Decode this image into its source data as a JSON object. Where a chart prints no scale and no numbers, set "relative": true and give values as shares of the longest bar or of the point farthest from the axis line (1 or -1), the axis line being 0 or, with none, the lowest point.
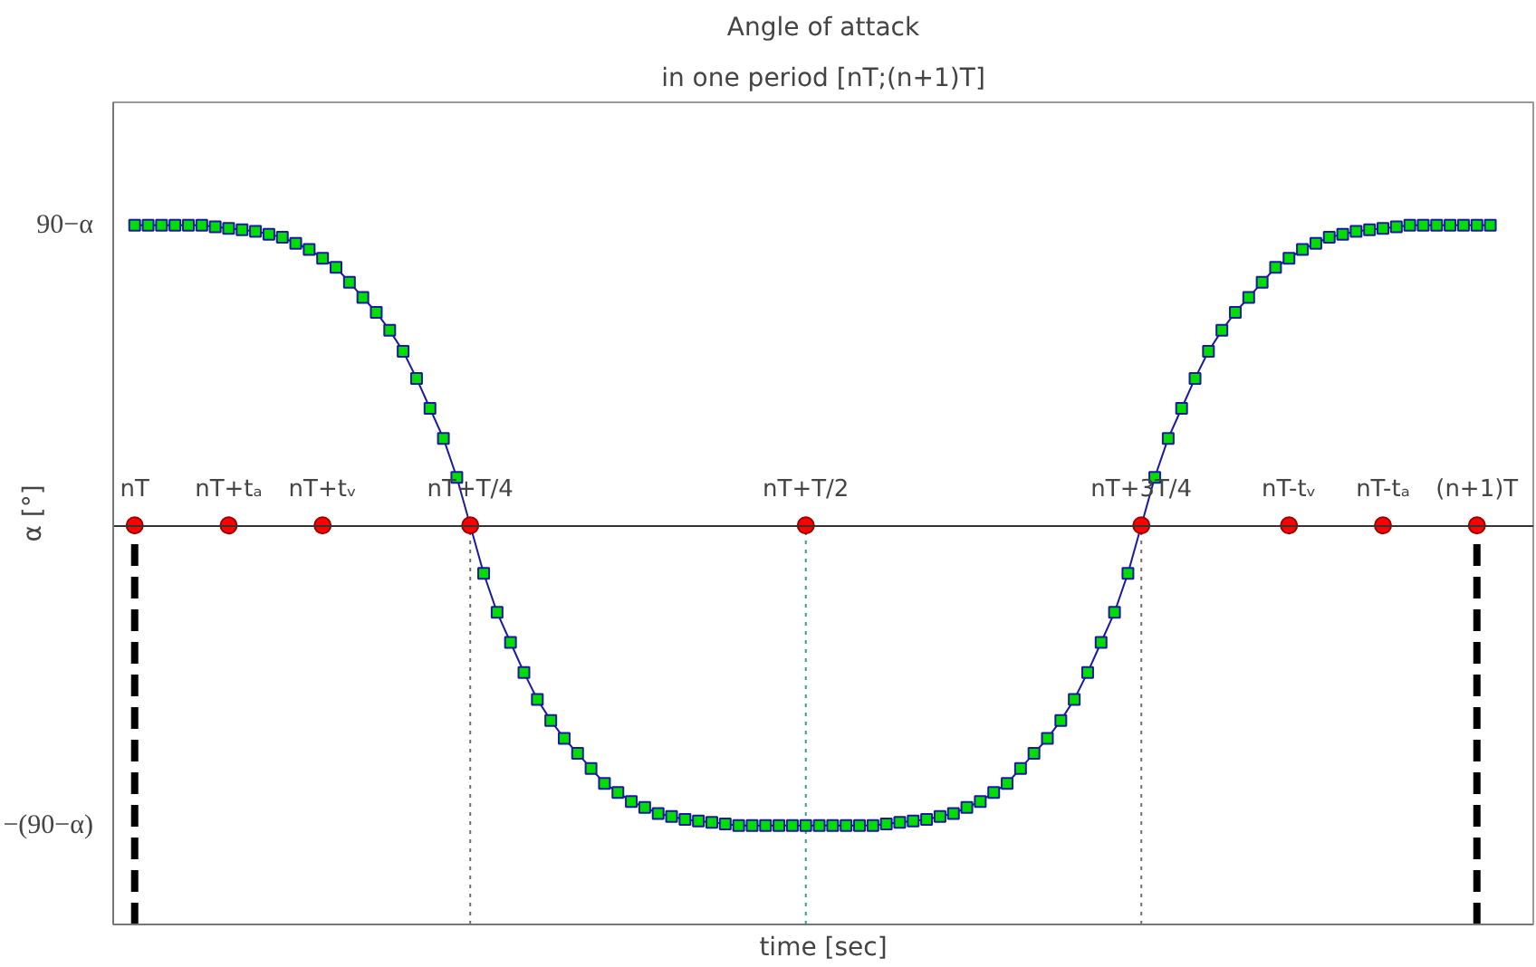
{
  "chart_data": {
    "type": "line",
    "title": "Angle of attack",
    "subtitle": "in one period [nT;(n+1)T]",
    "xlabel": "time [sec]",
    "ylabel": "α [°]",
    "relative": true,
    "grid": false,
    "categories": [
      "nT",
      null,
      null,
      null,
      null,
      null,
      null,
      "nT+tₐ",
      null,
      null,
      null,
      null,
      null,
      null,
      "nT+tᵥ",
      null,
      null,
      null,
      null,
      null,
      null,
      null,
      null,
      null,
      null,
      "nT+T/4",
      null,
      null,
      null,
      null,
      null,
      null,
      null,
      null,
      null,
      null,
      null,
      null,
      null,
      null,
      null,
      null,
      null,
      null,
      null,
      null,
      null,
      null,
      null,
      null,
      "nT+T/2",
      null,
      null,
      null,
      null,
      null,
      null,
      null,
      null,
      null,
      null,
      null,
      null,
      null,
      null,
      null,
      null,
      null,
      null,
      null,
      null,
      null,
      null,
      null,
      null,
      "nT+3T/4",
      null,
      null,
      null,
      null,
      null,
      null,
      null,
      null,
      null,
      null,
      "nT-tᵥ",
      null,
      null,
      null,
      null,
      null,
      null,
      "nT-tₐ",
      null,
      null,
      null,
      null,
      null,
      null,
      "(n+1)T",
      null
    ],
    "series": [
      {
        "color": "#1a1aa0",
        "marker": "square",
        "line_style": "solid",
        "values": [
          1,
          1,
          1,
          1,
          1,
          1,
          0.995,
          0.99,
          0.985,
          0.98,
          0.97,
          0.96,
          0.94,
          0.92,
          0.89,
          0.86,
          0.81,
          0.76,
          0.71,
          0.65,
          0.58,
          0.49,
          0.39,
          0.29,
          0.16,
          0,
          -0.16,
          -0.29,
          -0.39,
          -0.49,
          -0.58,
          -0.65,
          -0.71,
          -0.76,
          -0.81,
          -0.86,
          -0.89,
          -0.92,
          -0.94,
          -0.96,
          -0.97,
          -0.98,
          -0.985,
          -0.99,
          -0.995,
          -1,
          -1,
          -1,
          -1,
          -1,
          -1,
          -1,
          -1,
          -1,
          -1,
          -1,
          -0.995,
          -0.99,
          -0.985,
          -0.98,
          -0.97,
          -0.96,
          -0.94,
          -0.92,
          -0.89,
          -0.86,
          -0.81,
          -0.76,
          -0.71,
          -0.65,
          -0.58,
          -0.49,
          -0.39,
          -0.29,
          -0.16,
          0,
          0.16,
          0.29,
          0.39,
          0.49,
          0.58,
          0.65,
          0.71,
          0.76,
          0.81,
          0.86,
          0.89,
          0.92,
          0.94,
          0.96,
          0.97,
          0.98,
          0.985,
          0.99,
          0.995,
          1,
          1,
          1,
          1,
          1,
          1,
          1
        ]
      },
      {
        "type": "scatter",
        "color": "#ff0000",
        "marker": "circle",
        "x": [
          "nT",
          "nT+tₐ",
          "nT+tᵥ",
          "nT+T/4",
          "nT+T/2",
          "nT+3T/4",
          "nT-tᵥ",
          "nT-tₐ",
          "(n+1)T"
        ],
        "values": [
          0,
          0,
          0,
          0,
          0,
          0,
          0,
          0,
          0
        ]
      }
    ],
    "ref_lines": [
      {
        "axis": "x",
        "value": "nT+T/4",
        "color": "#707070",
        "line_style": "dotted"
      },
      {
        "axis": "x",
        "value": "nT+T/2",
        "color": "#3aa080",
        "line_style": "dotted"
      },
      {
        "axis": "x",
        "value": "nT+3T/4",
        "color": "#707070",
        "line_style": "dotted"
      },
      {
        "axis": "x",
        "value": "nT",
        "color": "#000000",
        "line_style": "dashed"
      },
      {
        "axis": "x",
        "value": "(n+1)T",
        "color": "#000000",
        "line_style": "dashed"
      }
    ],
    "annotations": [
      "90−α",
      "−(90−α)"
    ]
  }
}
